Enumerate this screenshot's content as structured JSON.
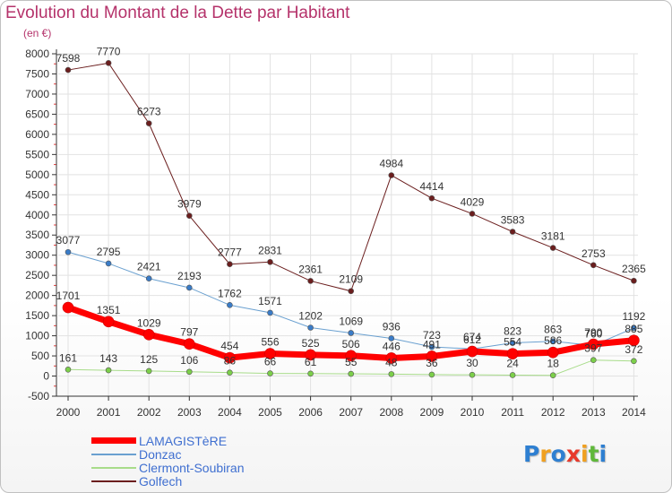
{
  "title": "Evolution du Montant de la Dette par Habitant",
  "subtitle": "(en €)",
  "logo": {
    "text": "Proxiti",
    "letters": [
      {
        "ch": "P",
        "color": "#2e7fd1"
      },
      {
        "ch": "r",
        "color": "#f0a020"
      },
      {
        "ch": "o",
        "color": "#2e7fd1"
      },
      {
        "ch": "x",
        "color": "#e8392b"
      },
      {
        "ch": "i",
        "color": "#f0a020"
      },
      {
        "ch": "t",
        "color": "#5fb83a"
      },
      {
        "ch": "i",
        "color": "#2e7fd1"
      }
    ]
  },
  "colors": {
    "title": "#b5336b",
    "grid": "#e2e2e2",
    "axis": "#333333",
    "tick_red": "#e43c3c"
  },
  "chart_data": {
    "type": "line",
    "categories": [
      "2000",
      "2001",
      "2002",
      "2003",
      "2004",
      "2005",
      "2006",
      "2007",
      "2008",
      "2009",
      "2010",
      "2011",
      "2012",
      "2013",
      "2014"
    ],
    "ylim": [
      -500,
      8000
    ],
    "yticks": [
      -500,
      0,
      500,
      1000,
      1500,
      2000,
      2500,
      3000,
      3500,
      4000,
      4500,
      5000,
      5500,
      6000,
      6500,
      7000,
      7500,
      8000
    ],
    "grid": true,
    "legend_position": "bottom-left",
    "series": [
      {
        "name": "Golfech",
        "color": "#6b1e1e",
        "marker": "#6b1e1e",
        "width": 1,
        "values": [
          7598,
          7770,
          6273,
          3979,
          2777,
          2831,
          2361,
          2109,
          4984,
          4414,
          4029,
          3583,
          3181,
          2753,
          2365
        ],
        "labels": [
          "7598",
          "7770",
          "6273",
          "3979",
          "2777",
          "2831",
          "2361",
          "2109",
          "4984",
          "4414",
          "4029",
          "3583",
          "3181",
          "2753",
          "2365"
        ]
      },
      {
        "name": "Donzac",
        "color": "#6aa0d0",
        "marker": "#3a7cc8",
        "width": 1,
        "values": [
          3077,
          2795,
          2421,
          2193,
          1762,
          1571,
          1202,
          1069,
          936,
          723,
          674,
          823,
          863,
          760,
          1192
        ],
        "labels": [
          "3077",
          "2795",
          "2421",
          "2193",
          "1762",
          "1571",
          "1202",
          "1069",
          "936",
          "723",
          "674",
          "823",
          "863",
          "760",
          "1192"
        ]
      },
      {
        "name": "Clermont-Soubiran",
        "color": "#a8dc8a",
        "marker": "#7ccf4a",
        "width": 1,
        "values": [
          161,
          143,
          125,
          106,
          86,
          66,
          61,
          55,
          48,
          36,
          30,
          24,
          18,
          397,
          372
        ],
        "labels": [
          "161",
          "143",
          "125",
          "106",
          "86",
          "66",
          "61",
          "55",
          "48",
          "36",
          "30",
          "24",
          "18",
          "397",
          "372"
        ]
      },
      {
        "name": "LAMAGISTèRE",
        "color": "#ff0000",
        "marker": "#ff0000",
        "width": 7,
        "values": [
          1701,
          1351,
          1029,
          797,
          454,
          556,
          525,
          506,
          446,
          491,
          612,
          554,
          586,
          790,
          885
        ],
        "labels": [
          "1701",
          "1351",
          "1029",
          "797",
          "454",
          "556",
          "525",
          "506",
          "446",
          "491",
          "612",
          "554",
          "586",
          "790",
          "885"
        ]
      }
    ]
  },
  "legend": [
    {
      "label": "LAMAGISTèRE",
      "color": "#ff0000",
      "thickness": 7
    },
    {
      "label": "Donzac",
      "color": "#6aa0d0",
      "thickness": 2
    },
    {
      "label": "Clermont-Soubiran",
      "color": "#a8dc8a",
      "thickness": 2
    },
    {
      "label": "Golfech",
      "color": "#6b1e1e",
      "thickness": 2
    }
  ]
}
